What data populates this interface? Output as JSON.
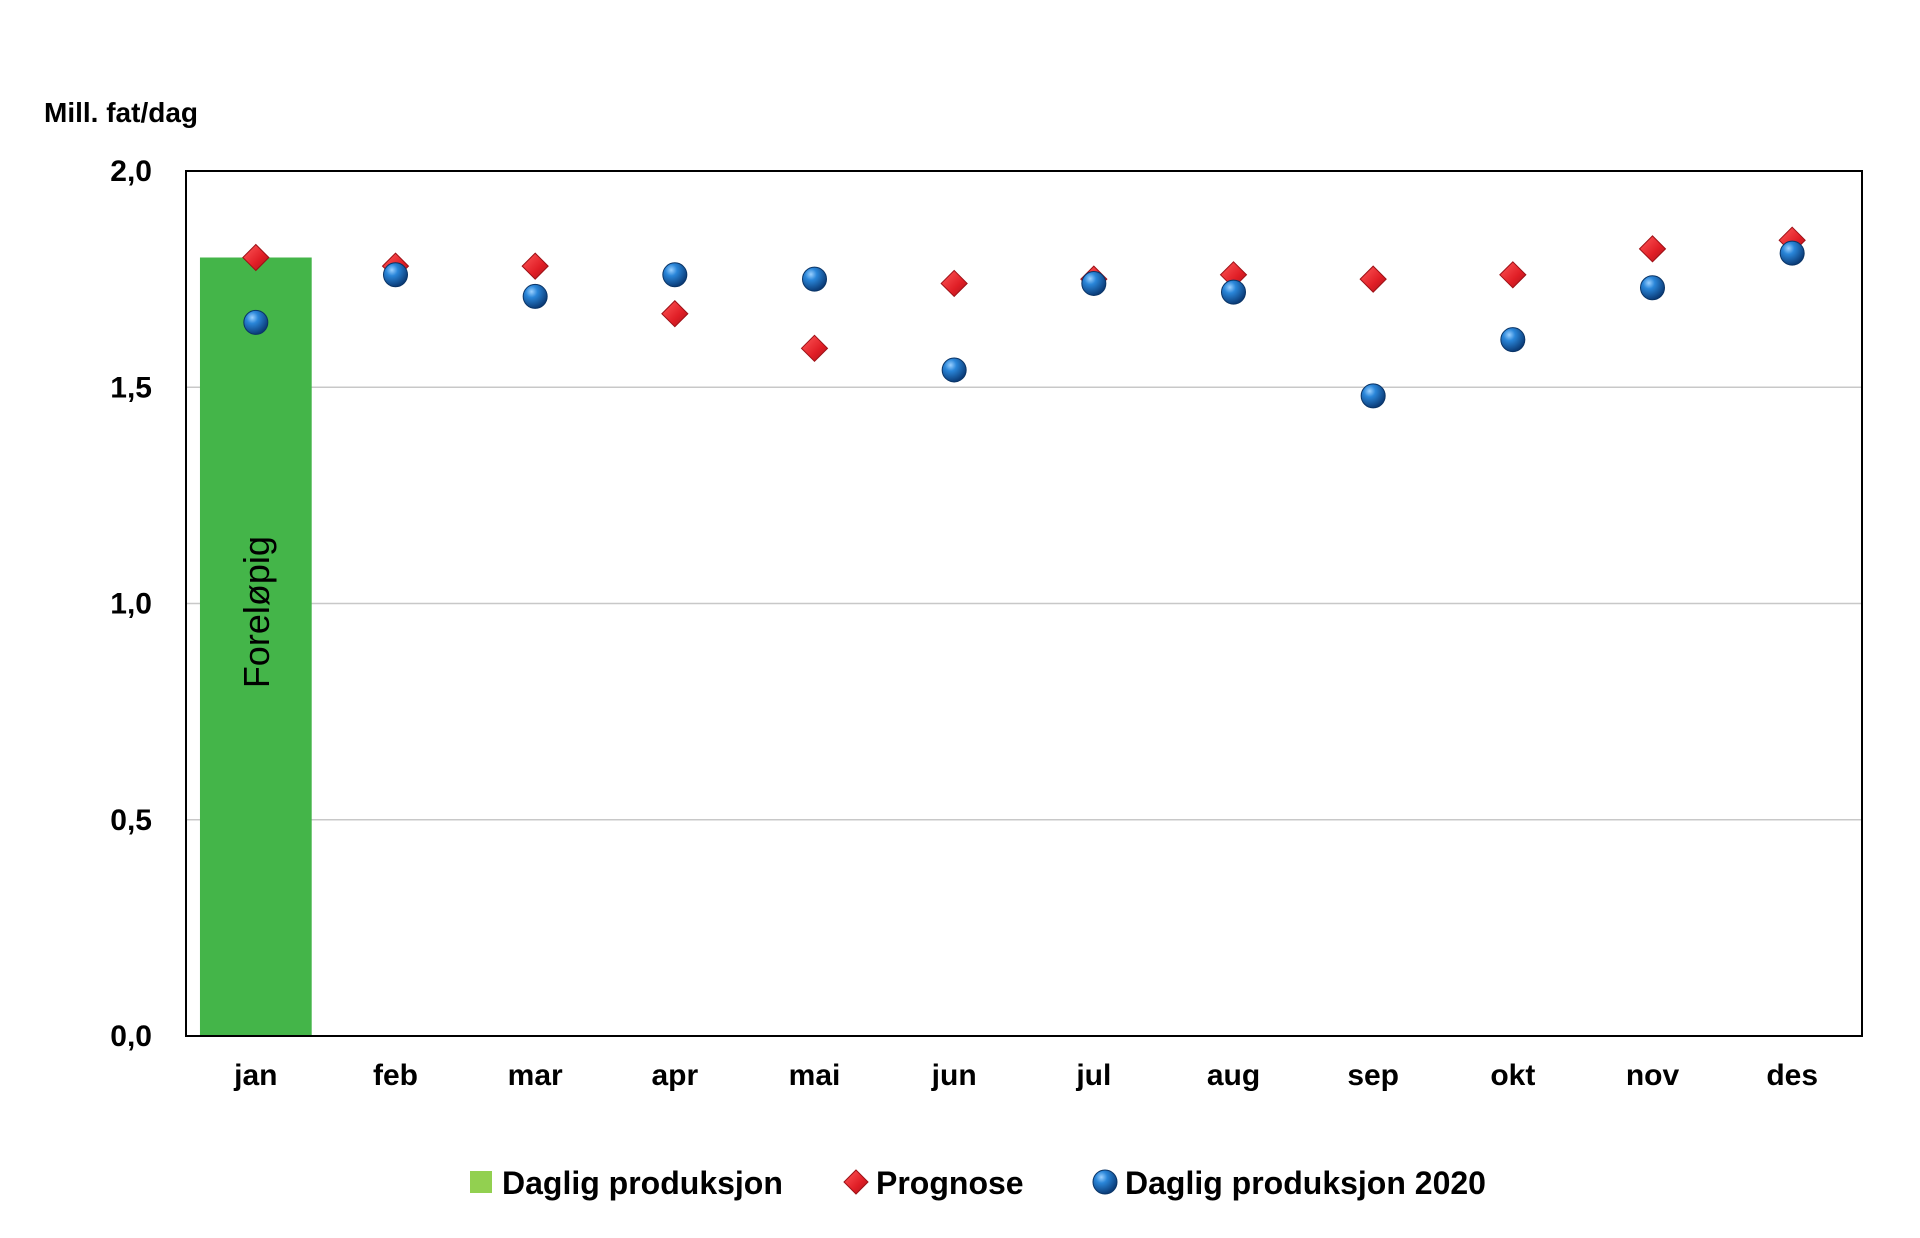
{
  "chart_data": {
    "type": "bar",
    "title": "",
    "ylabel": "Mill. fat/dag",
    "xlabel": "",
    "ylim": [
      0,
      2.0
    ],
    "yticks": [
      "0,0",
      "0,5",
      "1,0",
      "1,5",
      "2,0"
    ],
    "ytick_values": [
      0,
      0.5,
      1.0,
      1.5,
      2.0
    ],
    "categories": [
      "jan",
      "feb",
      "mar",
      "apr",
      "mai",
      "jun",
      "jul",
      "aug",
      "sep",
      "okt",
      "nov",
      "des"
    ],
    "grid": true,
    "legend_position": "bottom",
    "series": [
      {
        "name": "Daglig produksjon",
        "kind": "bar",
        "color": "#44b549",
        "legend_color": "#92d050",
        "values": [
          1.8,
          null,
          null,
          null,
          null,
          null,
          null,
          null,
          null,
          null,
          null,
          null
        ]
      },
      {
        "name": "Prognose",
        "kind": "diamond",
        "color": "#e8202a",
        "values": [
          1.8,
          1.78,
          1.78,
          1.67,
          1.59,
          1.74,
          1.75,
          1.76,
          1.75,
          1.76,
          1.82,
          1.84
        ]
      },
      {
        "name": "Daglig produksjon 2020",
        "kind": "circle",
        "color": "#1f6fbf",
        "values": [
          1.65,
          1.76,
          1.71,
          1.76,
          1.75,
          1.54,
          1.74,
          1.72,
          1.48,
          1.61,
          1.73,
          1.81
        ]
      }
    ],
    "annotations": [
      {
        "text": "Foreløpig",
        "category": "jan"
      }
    ]
  }
}
